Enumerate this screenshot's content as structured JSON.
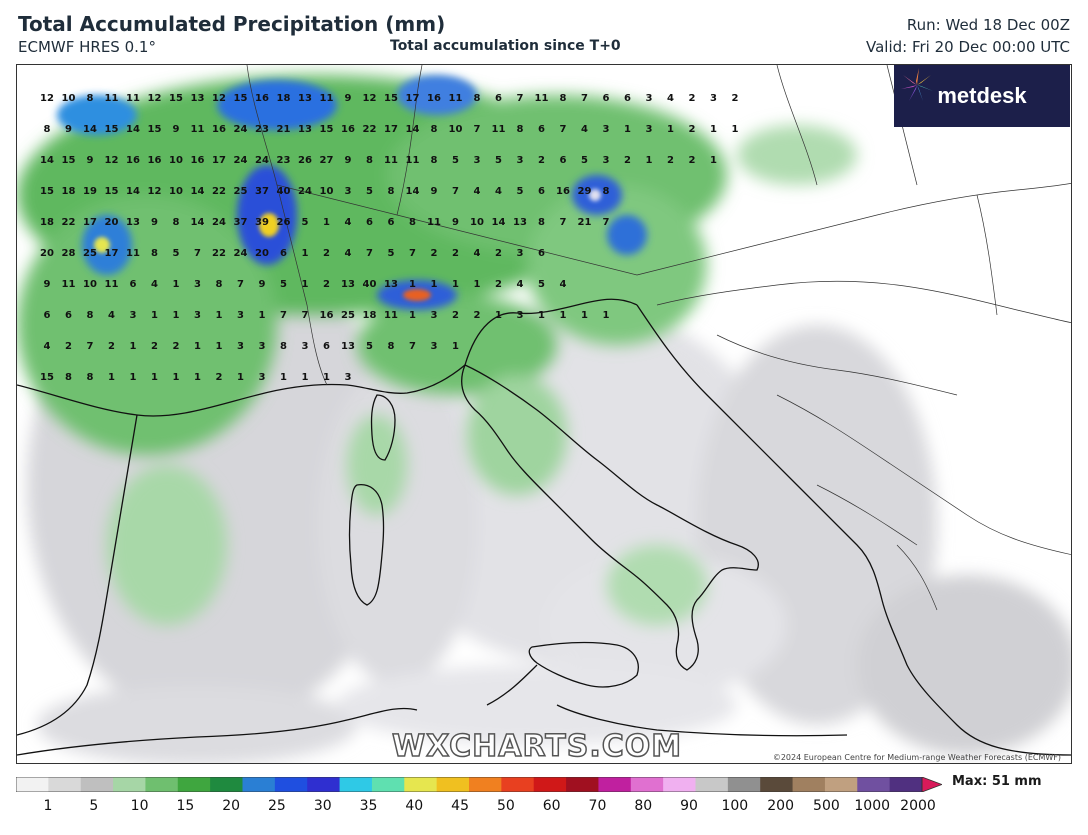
{
  "header": {
    "title": "Total Accumulated Precipitation (mm)",
    "model": "ECMWF HRES 0.1°",
    "subtitle": "Total accumulation since T+0",
    "run": "Run: Wed 18 Dec 00Z",
    "valid": "Valid: Fri 20 Dec 00:00 UTC"
  },
  "logo": {
    "text": "metdesk",
    "icon": "pinwheel-icon"
  },
  "watermark": "WXCHARTS.COM",
  "copyright": "©2024 European Centre for Medium-range Weather Forecasts (ECMWF)",
  "legend": {
    "ticks": [
      "1",
      "5",
      "10",
      "15",
      "20",
      "25",
      "30",
      "35",
      "40",
      "45",
      "50",
      "60",
      "70",
      "80",
      "90",
      "100",
      "200",
      "500",
      "1000",
      "2000"
    ],
    "max_label": "Max: 51 mm",
    "colors": [
      "#f2f2f2",
      "#d9d9d9",
      "#bfbfbf",
      "#a6d6a6",
      "#6fbf6f",
      "#3fa63f",
      "#1f8a3f",
      "#2a7fd4",
      "#1f4fe0",
      "#2f2fd0",
      "#2fc9e6",
      "#5fe0b0",
      "#e6e64f",
      "#f0c020",
      "#f08020",
      "#e84020",
      "#d01818",
      "#a01020",
      "#c0209f",
      "#e070d0",
      "#f0b0f0",
      "#c8c8c8",
      "#909090",
      "#5a4a3a",
      "#a08060",
      "#c0a080",
      "#7050a0",
      "#503080"
    ]
  },
  "values_grid": [
    [
      "12",
      "10",
      "8",
      "11",
      "11",
      "12",
      "15",
      "13",
      "12",
      "15",
      "16",
      "18",
      "13",
      "11",
      "9",
      "12",
      "15",
      "17",
      "16",
      "11",
      "8",
      "6",
      "7",
      "11",
      "8",
      "7",
      "6",
      "6",
      "3",
      "4",
      "2",
      "3",
      "2"
    ],
    [
      "8",
      "9",
      "14",
      "15",
      "14",
      "15",
      "9",
      "11",
      "16",
      "24",
      "23",
      "21",
      "13",
      "15",
      "16",
      "22",
      "17",
      "14",
      "8",
      "10",
      "7",
      "11",
      "8",
      "6",
      "7",
      "4",
      "3",
      "1",
      "3",
      "1",
      "2",
      "1",
      "1"
    ],
    [
      "14",
      "15",
      "9",
      "12",
      "16",
      "16",
      "10",
      "16",
      "17",
      "24",
      "24",
      "23",
      "26",
      "27",
      "9",
      "8",
      "11",
      "11",
      "8",
      "5",
      "3",
      "5",
      "3",
      "2",
      "6",
      "5",
      "3",
      "2",
      "1",
      "2",
      "2",
      "1"
    ],
    [
      "15",
      "18",
      "19",
      "15",
      "14",
      "12",
      "10",
      "14",
      "22",
      "25",
      "37",
      "40",
      "24",
      "10",
      "3",
      "5",
      "8",
      "14",
      "9",
      "7",
      "4",
      "4",
      "5",
      "6",
      "16",
      "29",
      "8"
    ],
    [
      "18",
      "22",
      "17",
      "20",
      "13",
      "9",
      "8",
      "14",
      "24",
      "37",
      "39",
      "26",
      "5",
      "1",
      "4",
      "6",
      "6",
      "8",
      "11",
      "9",
      "10",
      "14",
      "13",
      "8",
      "7",
      "21",
      "7"
    ],
    [
      "20",
      "28",
      "25",
      "17",
      "11",
      "8",
      "5",
      "7",
      "22",
      "24",
      "20",
      "6",
      "1",
      "2",
      "4",
      "7",
      "5",
      "7",
      "2",
      "2",
      "4",
      "2",
      "3",
      "6"
    ],
    [
      "9",
      "11",
      "10",
      "11",
      "6",
      "4",
      "1",
      "3",
      "8",
      "7",
      "9",
      "5",
      "1",
      "2",
      "13",
      "40",
      "13",
      "1",
      "1",
      "1",
      "1",
      "2",
      "4",
      "5",
      "4"
    ],
    [
      "6",
      "6",
      "8",
      "4",
      "3",
      "1",
      "1",
      "3",
      "1",
      "3",
      "1",
      "7",
      "7",
      "16",
      "25",
      "18",
      "11",
      "1",
      "3",
      "2",
      "2",
      "1",
      "3",
      "1",
      "1",
      "1",
      "1"
    ],
    [
      "4",
      "2",
      "7",
      "2",
      "1",
      "2",
      "2",
      "1",
      "1",
      "3",
      "3",
      "8",
      "3",
      "6",
      "13",
      "5",
      "8",
      "7",
      "3",
      "1"
    ],
    [
      "15",
      "8",
      "8",
      "1",
      "1",
      "1",
      "1",
      "1",
      "2",
      "1",
      "3",
      "1",
      "1",
      "1",
      "3"
    ]
  ]
}
